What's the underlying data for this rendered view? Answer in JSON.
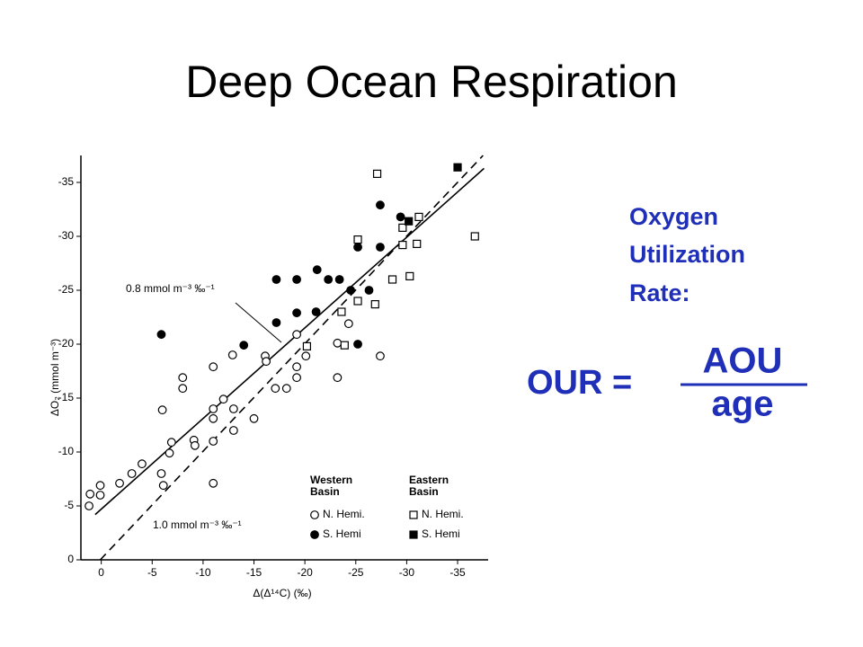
{
  "slide": {
    "title": "Deep Ocean Respiration",
    "acronym_lines": [
      "Oxygen",
      "Utilization",
      "Rate:"
    ],
    "formula": {
      "lhs": "OUR =",
      "numerator": "AOU",
      "denominator": "age"
    }
  },
  "chart_data": {
    "type": "scatter",
    "x_label": "Δ(Δ¹⁴C) (‰)",
    "y_label": "ΔO₂ (mmol m⁻³)",
    "xlim": [
      2,
      -38
    ],
    "ylim": [
      0,
      -37.5
    ],
    "xticks": [
      0,
      -5,
      -10,
      -15,
      -20,
      -25,
      -30,
      -35
    ],
    "yticks": [
      0,
      -5,
      -10,
      -15,
      -20,
      -25,
      -30,
      -35
    ],
    "legend_groups": [
      "Western Basin",
      "Eastern Basin"
    ],
    "series": [
      {
        "name": "N. Hemi.",
        "marker": "circle",
        "filled": false,
        "color": "#000000",
        "x": [
          1.2,
          1.1,
          0.1,
          0.1,
          -1.8,
          -3.0,
          -4.0,
          -5.9,
          -6.1,
          -6.7,
          -6.9,
          -9.1,
          -9.2,
          -11.0,
          -11.0,
          -11.0,
          -11.0,
          -12.0,
          -13.0,
          -13.0,
          -15.0,
          -6.0,
          -8.0,
          -8.0,
          -11.0,
          -12.9,
          -16.1,
          -16.2,
          -17.1,
          -18.2,
          -19.2,
          -19.2,
          -19.2,
          -20.1,
          -23.2,
          -23.2,
          -24.3,
          -27.4
        ],
        "values": [
          -5.0,
          -6.1,
          -6.0,
          -6.9,
          -7.1,
          -8.0,
          -8.9,
          -8.0,
          -6.9,
          -9.9,
          -10.9,
          -11.1,
          -10.6,
          -11.0,
          -7.1,
          -13.1,
          -14.0,
          -14.9,
          -14.0,
          -12.0,
          -13.1,
          -13.9,
          -16.9,
          -15.9,
          -17.9,
          -19.0,
          -18.9,
          -18.4,
          -15.9,
          -15.9,
          -16.9,
          -17.9,
          -20.9,
          -18.9,
          -16.9,
          -20.1,
          -21.9,
          -18.9
        ]
      },
      {
        "name": "S. Hemi",
        "marker": "circle",
        "filled": true,
        "color": "#000000",
        "x": [
          -5.9,
          -14.0,
          -17.2,
          -17.2,
          -19.2,
          -19.2,
          -21.1,
          -21.2,
          -22.3,
          -23.4,
          -24.5,
          -25.2,
          -25.2,
          -26.3,
          -27.4,
          -27.4,
          -29.4
        ],
        "values": [
          -20.9,
          -19.9,
          -22.0,
          -26.0,
          -26.0,
          -22.9,
          -23.0,
          -26.9,
          -26.0,
          -26.0,
          -25.0,
          -20.0,
          -29.0,
          -25.0,
          -29.0,
          -32.9,
          -31.8
        ]
      },
      {
        "name": "N. Hemi.",
        "marker": "square",
        "filled": false,
        "color": "#000000",
        "x": [
          -20.2,
          -23.6,
          -23.9,
          -25.2,
          -25.2,
          -26.9,
          -27.1,
          -28.6,
          -29.6,
          -29.6,
          -30.3,
          -31.0,
          -31.2,
          -36.7
        ],
        "values": [
          -19.8,
          -23.0,
          -19.9,
          -24.0,
          -29.7,
          -23.7,
          -35.8,
          -26.0,
          -30.8,
          -29.2,
          -26.3,
          -29.3,
          -31.8,
          -30.0
        ]
      },
      {
        "name": "S. Hemi",
        "marker": "square",
        "filled": true,
        "color": "#000000",
        "x": [
          -35.0,
          -30.2
        ],
        "values": [
          -36.4,
          -31.4
        ]
      }
    ],
    "fit_lines": [
      {
        "label": "0.8 mmol m⁻³ ‰⁻¹",
        "style": "solid",
        "x": [
          0.6,
          -37.6
        ],
        "y": [
          -4.2,
          -36.3
        ]
      },
      {
        "label": "1.0 mmol m⁻³ ‰⁻¹",
        "style": "dashed",
        "x": [
          0.1,
          -37.5
        ],
        "y": [
          0,
          -37.5
        ]
      }
    ]
  }
}
